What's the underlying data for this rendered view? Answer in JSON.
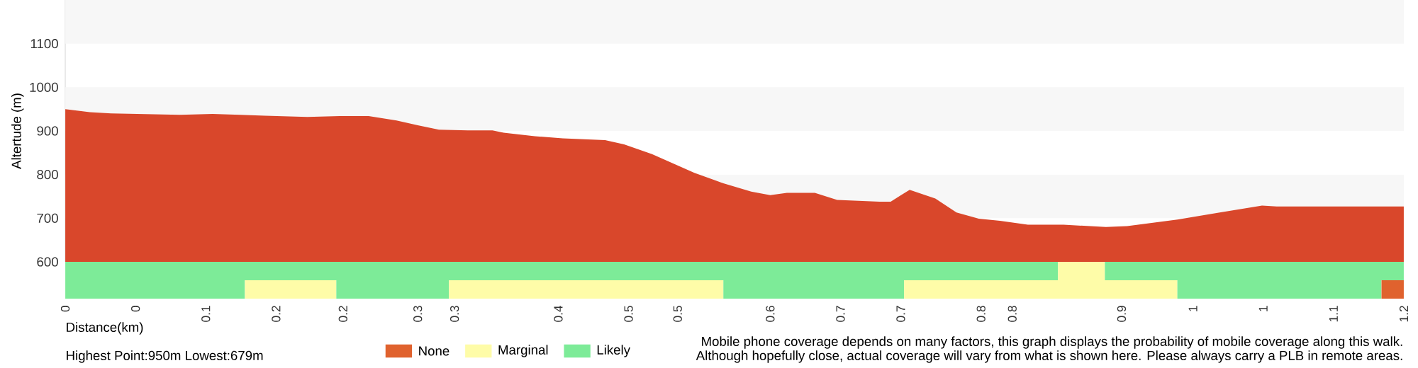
{
  "chart_data": [
    {
      "type": "area",
      "ylabel": "Altertude (m)",
      "color": "#d9472b",
      "tick_labels": "y",
      "x": [
        0,
        0.022,
        0.041,
        0.103,
        0.132,
        0.157,
        0.179,
        0.217,
        0.246,
        0.272,
        0.297,
        0.316,
        0.335,
        0.361,
        0.383,
        0.393,
        0.421,
        0.446,
        0.484,
        0.501,
        0.526,
        0.564,
        0.59,
        0.615,
        0.632,
        0.647,
        0.672,
        0.692,
        0.73,
        0.74,
        0.757,
        0.78,
        0.799,
        0.819,
        0.838,
        0.863,
        0.895,
        0.933,
        0.952,
        0.997,
        1.035,
        1.073,
        1.086,
        1.124,
        1.2
      ],
      "values": [
        950,
        943,
        940,
        937,
        939,
        937,
        935,
        932,
        934,
        934,
        924,
        913,
        903,
        901,
        901,
        896,
        888,
        883,
        879,
        869,
        847,
        804,
        780,
        761,
        753,
        758,
        758,
        742,
        738,
        738,
        765,
        745,
        713,
        699,
        694,
        685,
        685,
        680,
        682,
        697,
        713,
        729,
        727,
        727,
        727
      ],
      "xlim": [
        0,
        1.2
      ],
      "ylim": [
        600,
        1200
      ],
      "yticks": [
        600,
        700,
        800,
        900,
        1000,
        1100
      ],
      "bands": [
        {
          "axis": "y",
          "from": 700,
          "to": 800,
          "color": "#f7f7f7"
        },
        {
          "axis": "y",
          "from": 900,
          "to": 1000,
          "color": "#f7f7f7"
        },
        {
          "axis": "y",
          "from": 1100,
          "to": 1200,
          "color": "#f7f7f7"
        }
      ]
    },
    {
      "type": "bar",
      "orientation": "horizontal",
      "stacked": true,
      "categories": [
        null,
        null
      ],
      "xlabel": "Distance(km)",
      "legend": "bottom",
      "tick_labels": "x",
      "xlim": [
        0,
        1.2
      ],
      "xticks": [
        {
          "value": 0,
          "label": "0"
        },
        {
          "value": 0.063,
          "label": "0"
        },
        {
          "value": 0.126,
          "label": "0.1"
        },
        {
          "value": 0.189,
          "label": "0.2"
        },
        {
          "value": 0.249,
          "label": "0.2"
        },
        {
          "value": 0.316,
          "label": "0.3"
        },
        {
          "value": 0.349,
          "label": "0.3"
        },
        {
          "value": 0.442,
          "label": "0.4"
        },
        {
          "value": 0.505,
          "label": "0.5"
        },
        {
          "value": 0.549,
          "label": "0.5"
        },
        {
          "value": 0.632,
          "label": "0.6"
        },
        {
          "value": 0.695,
          "label": "0.7"
        },
        {
          "value": 0.749,
          "label": "0.7"
        },
        {
          "value": 0.821,
          "label": "0.8"
        },
        {
          "value": 0.849,
          "label": "0.8"
        },
        {
          "value": 0.947,
          "label": "0.9"
        },
        {
          "value": 1.011,
          "label": "1"
        },
        {
          "value": 1.074,
          "label": "1"
        },
        {
          "value": 1.137,
          "label": "1.1"
        },
        {
          "value": 1.2,
          "label": "1.2"
        }
      ],
      "series": [
        {
          "name": "Likely",
          "color": "#7deb98",
          "values": [
            0.89,
            null
          ]
        },
        {
          "name": "Marginal",
          "color": "#fefca8",
          "values": [
            0.042,
            null
          ]
        },
        {
          "color": "#7deb98",
          "values": [
            0.268,
            null
          ]
        },
        {
          "color": "#7deb98",
          "values": [
            null,
            0.161
          ]
        },
        {
          "color": "#fefca8",
          "values": [
            null,
            0.082
          ]
        },
        {
          "color": "#7deb98",
          "values": [
            null,
            0.101
          ]
        },
        {
          "color": "#fefca8",
          "values": [
            null,
            0.246
          ]
        },
        {
          "color": "#7deb98",
          "values": [
            null,
            0.162
          ]
        },
        {
          "color": "#fefca8",
          "values": [
            null,
            0.245
          ]
        },
        {
          "color": "#7deb98",
          "values": [
            null,
            0.183
          ]
        },
        {
          "name": "None",
          "color": "#e0622e",
          "values": [
            null,
            0.02
          ]
        }
      ],
      "annotations": [
        "Highest Point:950m Lowest:679m",
        "Mobile phone coverage depends on many factors, this graph displays the probability of mobile coverage along this walk.",
        "Although hopefully close, actual coverage will vary from what is shown here. Please always carry a PLB in remote areas."
      ]
    }
  ]
}
